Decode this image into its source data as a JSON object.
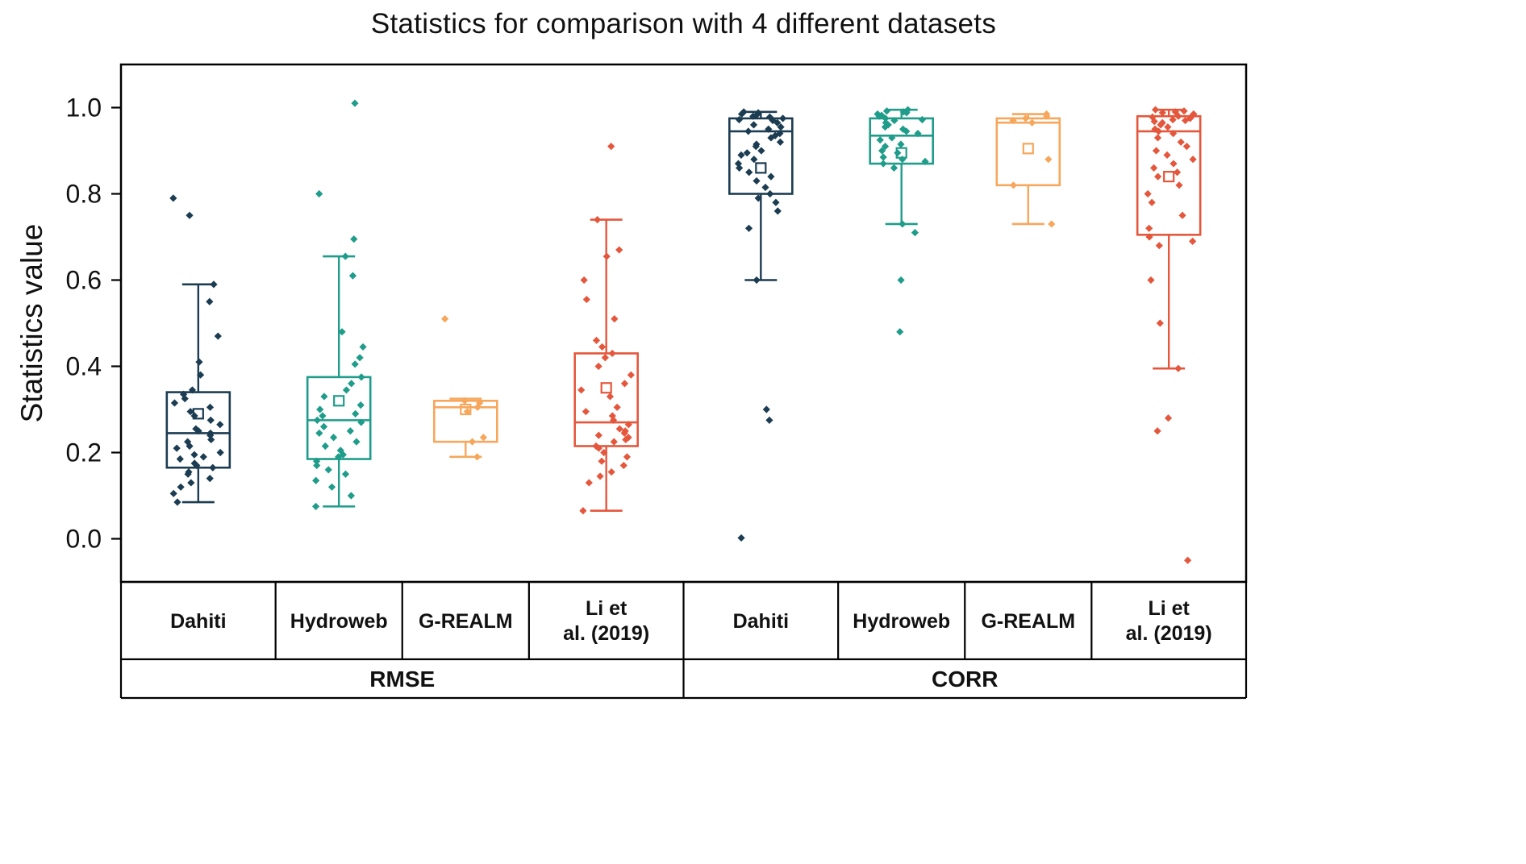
{
  "title": "Statistics for comparison with 4 different datasets",
  "ylabel": "Statistics value",
  "chart_data": {
    "type": "boxplot",
    "title": "Statistics for comparison with 4 different datasets",
    "ylabel": "Statistics value",
    "ylim": [
      -0.1,
      1.1
    ],
    "yticks": [
      0.0,
      0.2,
      0.4,
      0.6,
      0.8,
      1.0
    ],
    "grid": false,
    "group_labels": [
      "RMSE",
      "CORR"
    ],
    "series": [
      {
        "group": "RMSE",
        "label": "Dahiti",
        "label_lines": [
          "Dahiti"
        ],
        "color": "#1c3c52",
        "box": {
          "whisker_low": 0.085,
          "q1": 0.165,
          "median": 0.245,
          "q3": 0.34,
          "whisker_high": 0.59,
          "mean": 0.29
        },
        "points": [
          0.79,
          0.75,
          0.59,
          0.55,
          0.47,
          0.41,
          0.38,
          0.345,
          0.335,
          0.325,
          0.315,
          0.305,
          0.295,
          0.285,
          0.275,
          0.265,
          0.255,
          0.25,
          0.245,
          0.24,
          0.23,
          0.225,
          0.215,
          0.21,
          0.2,
          0.195,
          0.19,
          0.185,
          0.175,
          0.17,
          0.165,
          0.155,
          0.15,
          0.14,
          0.13,
          0.12,
          0.105,
          0.085
        ]
      },
      {
        "group": "RMSE",
        "label": "Hydroweb",
        "label_lines": [
          "Hydroweb"
        ],
        "color": "#1f9c8a",
        "box": {
          "whisker_low": 0.075,
          "q1": 0.185,
          "median": 0.275,
          "q3": 0.375,
          "whisker_high": 0.655,
          "mean": 0.32
        },
        "points": [
          1.01,
          0.8,
          0.695,
          0.655,
          0.61,
          0.48,
          0.445,
          0.42,
          0.405,
          0.375,
          0.36,
          0.345,
          0.33,
          0.31,
          0.3,
          0.29,
          0.285,
          0.275,
          0.27,
          0.26,
          0.25,
          0.245,
          0.235,
          0.225,
          0.215,
          0.205,
          0.195,
          0.19,
          0.18,
          0.17,
          0.16,
          0.15,
          0.135,
          0.12,
          0.1,
          0.075
        ]
      },
      {
        "group": "RMSE",
        "label": "G-REALM",
        "label_lines": [
          "G-REALM"
        ],
        "color": "#f6a75c",
        "box": {
          "whisker_low": 0.19,
          "q1": 0.225,
          "median": 0.305,
          "q3": 0.32,
          "whisker_high": 0.325,
          "mean": 0.3
        },
        "points": [
          0.51,
          0.32,
          0.315,
          0.305,
          0.295,
          0.235,
          0.225,
          0.19
        ]
      },
      {
        "group": "RMSE",
        "label": "Li et al. (2019)",
        "label_lines": [
          "Li et",
          "al. (2019)"
        ],
        "color": "#e4573c",
        "box": {
          "whisker_low": 0.065,
          "q1": 0.215,
          "median": 0.27,
          "q3": 0.43,
          "whisker_high": 0.74,
          "mean": 0.35
        },
        "points": [
          0.91,
          0.74,
          0.67,
          0.655,
          0.6,
          0.555,
          0.51,
          0.46,
          0.445,
          0.43,
          0.42,
          0.4,
          0.38,
          0.36,
          0.345,
          0.33,
          0.305,
          0.295,
          0.285,
          0.275,
          0.265,
          0.255,
          0.25,
          0.245,
          0.24,
          0.235,
          0.23,
          0.225,
          0.215,
          0.21,
          0.2,
          0.19,
          0.18,
          0.17,
          0.155,
          0.145,
          0.13,
          0.065
        ]
      },
      {
        "group": "CORR",
        "label": "Dahiti",
        "label_lines": [
          "Dahiti"
        ],
        "color": "#1c3c52",
        "box": {
          "whisker_low": 0.6,
          "q1": 0.8,
          "median": 0.945,
          "q3": 0.975,
          "whisker_high": 0.99,
          "mean": 0.86
        },
        "points": [
          0.99,
          0.988,
          0.985,
          0.982,
          0.98,
          0.978,
          0.975,
          0.972,
          0.97,
          0.965,
          0.96,
          0.955,
          0.95,
          0.945,
          0.94,
          0.935,
          0.93,
          0.92,
          0.915,
          0.91,
          0.9,
          0.895,
          0.89,
          0.88,
          0.87,
          0.86,
          0.85,
          0.84,
          0.83,
          0.815,
          0.8,
          0.79,
          0.78,
          0.76,
          0.72,
          0.6,
          0.3,
          0.275,
          0.002
        ]
      },
      {
        "group": "CORR",
        "label": "Hydroweb",
        "label_lines": [
          "Hydroweb"
        ],
        "color": "#1f9c8a",
        "box": {
          "whisker_low": 0.73,
          "q1": 0.87,
          "median": 0.935,
          "q3": 0.975,
          "whisker_high": 0.995,
          "mean": 0.895
        },
        "points": [
          0.995,
          0.992,
          0.99,
          0.988,
          0.985,
          0.982,
          0.98,
          0.975,
          0.972,
          0.97,
          0.965,
          0.96,
          0.955,
          0.95,
          0.945,
          0.94,
          0.93,
          0.925,
          0.915,
          0.91,
          0.9,
          0.895,
          0.885,
          0.88,
          0.875,
          0.87,
          0.86,
          0.73,
          0.71,
          0.6,
          0.48
        ]
      },
      {
        "group": "CORR",
        "label": "G-REALM",
        "label_lines": [
          "G-REALM"
        ],
        "color": "#f6a75c",
        "box": {
          "whisker_low": 0.73,
          "q1": 0.82,
          "median": 0.965,
          "q3": 0.975,
          "whisker_high": 0.985,
          "mean": 0.905
        },
        "points": [
          0.985,
          0.98,
          0.975,
          0.97,
          0.965,
          0.88,
          0.82,
          0.73
        ]
      },
      {
        "group": "CORR",
        "label": "Li et al. (2019)",
        "label_lines": [
          "Li et",
          "al. (2019)"
        ],
        "color": "#e4573c",
        "box": {
          "whisker_low": 0.395,
          "q1": 0.705,
          "median": 0.945,
          "q3": 0.98,
          "whisker_high": 0.995,
          "mean": 0.84
        },
        "points": [
          0.995,
          0.992,
          0.99,
          0.988,
          0.985,
          0.982,
          0.98,
          0.978,
          0.975,
          0.972,
          0.97,
          0.968,
          0.965,
          0.96,
          0.955,
          0.95,
          0.945,
          0.94,
          0.93,
          0.92,
          0.91,
          0.9,
          0.89,
          0.88,
          0.87,
          0.86,
          0.85,
          0.84,
          0.82,
          0.8,
          0.78,
          0.75,
          0.72,
          0.7,
          0.69,
          0.68,
          0.6,
          0.5,
          0.395,
          0.28,
          0.25,
          -0.05
        ]
      }
    ]
  }
}
